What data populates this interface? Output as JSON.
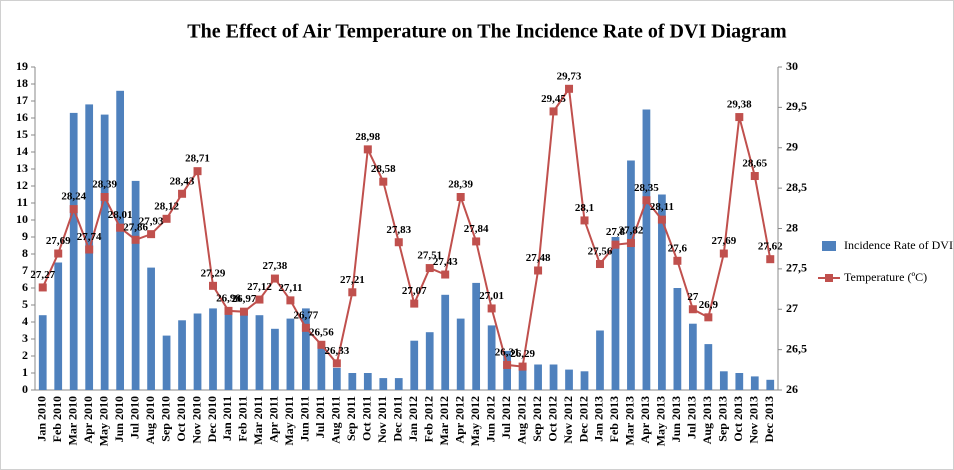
{
  "chart_data": {
    "type": "bar-line",
    "title": "The Effect of Air Temperature on The Incidence Rate of DVI Diagram",
    "categories": [
      "Jan 2010",
      "Feb 2010",
      "Mar 2010",
      "Apr 2010",
      "May 2010",
      "Jun 2010",
      "Jul 2010",
      "Aug 2010",
      "Sep 2010",
      "Oct 2010",
      "Nov 2010",
      "Dec 2010",
      "Jan 2011",
      "Feb 2011",
      "Mar 2011",
      "Apr 2011",
      "May 2011",
      "Jun 2011",
      "Jul 2011",
      "Aug 2011",
      "Sep 2011",
      "Oct 2011",
      "Nov 2011",
      "Dec 2011",
      "Jan 2012",
      "Feb 2012",
      "Mar 2012",
      "Apr 2012",
      "May 2012",
      "Jun 2012",
      "Jul 2012",
      "Aug 2012",
      "Sep 2012",
      "Oct 2012",
      "Nov 2012",
      "Dec 2012",
      "Jan 2013",
      "Feb 2013",
      "Mar 2013",
      "Apr 2013",
      "May 2013",
      "Jun 2013",
      "Jul 2013",
      "Aug 2013",
      "Sep 2013",
      "Oct 2013",
      "Nov 2013",
      "Dec 2013"
    ],
    "series": [
      {
        "name": "Incidence Rate of DVI",
        "color": "#4f81bd",
        "axis": "y",
        "values": [
          4.4,
          7.5,
          16.3,
          16.8,
          16.2,
          17.6,
          12.3,
          7.2,
          3.2,
          4.1,
          4.5,
          4.8,
          4.8,
          4.5,
          4.4,
          3.6,
          4.2,
          4.8,
          2.5,
          1.3,
          1.0,
          1.0,
          0.7,
          0.7,
          2.9,
          3.4,
          5.6,
          4.2,
          6.3,
          3.8,
          2.3,
          1.2,
          1.5,
          1.5,
          1.2,
          1.1,
          3.5,
          9.0,
          13.5,
          16.5,
          11.5,
          6.0,
          3.9,
          2.7,
          1.1,
          1.0,
          0.8,
          0.6
        ]
      },
      {
        "name": "Temperature (ºC)",
        "color": "#c0504d",
        "axis": "y2",
        "values": [
          27.27,
          27.69,
          28.24,
          27.74,
          28.39,
          28.01,
          27.86,
          27.93,
          28.12,
          28.43,
          28.71,
          27.29,
          26.98,
          26.97,
          27.12,
          27.38,
          27.11,
          26.77,
          26.56,
          26.33,
          27.21,
          28.98,
          28.58,
          27.83,
          27.07,
          27.51,
          27.43,
          28.39,
          27.84,
          27.01,
          26.31,
          26.29,
          27.48,
          29.45,
          29.73,
          28.1,
          27.56,
          27.8,
          27.82,
          28.35,
          28.11,
          27.6,
          27,
          26.9,
          27.69,
          29.38,
          28.65,
          27.62
        ],
        "value_labels": [
          "27,27",
          "27,69",
          "28,24",
          "27,74",
          "28,39",
          "28,01",
          "27,86",
          "27,93",
          "28,12",
          "28,43",
          "28,71",
          "27,29",
          "26,98",
          "26,97",
          "27,12",
          "27,38",
          "27,11",
          "26,77",
          "26,56",
          "26,33",
          "27,21",
          "28,98",
          "28,58",
          "27,83",
          "27,07",
          "27,51",
          "27,43",
          "28,39",
          "27,84",
          "27,01",
          "26,31",
          "26,29",
          "27,48",
          "29,45",
          "29,73",
          "28,1",
          "27,56",
          "27,8",
          "27,82",
          "28,35",
          "28,11",
          "27,6",
          "27",
          "26,9",
          "27,69",
          "29,38",
          "28,65",
          "27,62"
        ]
      }
    ],
    "ylim": [
      0,
      19
    ],
    "yticks": [
      0,
      1,
      2,
      3,
      4,
      5,
      6,
      7,
      8,
      9,
      10,
      11,
      12,
      13,
      14,
      15,
      16,
      17,
      18,
      19
    ],
    "y2lim": [
      26,
      30
    ],
    "y2ticks": [
      26,
      {
        "value": 26.5,
        "label": "26,5"
      },
      27,
      {
        "value": 27.5,
        "label": "27,5"
      },
      28,
      {
        "value": 28.5,
        "label": "28,5"
      },
      29,
      {
        "value": 29.5,
        "label": "29,5"
      },
      30
    ],
    "legend": "right"
  }
}
